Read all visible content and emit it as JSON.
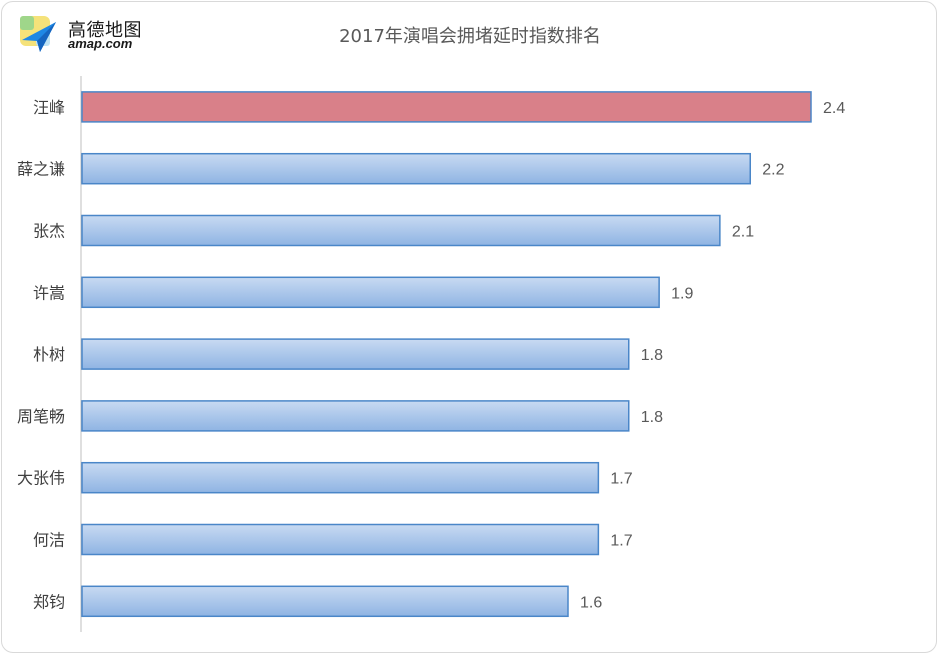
{
  "logo": {
    "cn": "高德地图",
    "en": "amap.com"
  },
  "colors": {
    "highlight": "#d98089",
    "bar_top": "#c8daf2",
    "bar_bottom": "#8fb4e3",
    "bar_stroke": "#4a86c8",
    "axis": "#bfbfbf"
  },
  "chart_data": {
    "type": "bar",
    "orientation": "horizontal",
    "title": "2017年演唱会拥堵延时指数排名",
    "categories": [
      "汪峰",
      "薛之谦",
      "张杰",
      "许嵩",
      "朴树",
      "周笔畅",
      "大张伟",
      "何洁",
      "郑钧"
    ],
    "values": [
      2.4,
      2.2,
      2.1,
      1.9,
      1.8,
      1.8,
      1.7,
      1.7,
      1.6
    ],
    "value_labels": [
      "2.4",
      "2.2",
      "2.1",
      "1.9",
      "1.8",
      "1.8",
      "1.7",
      "1.7",
      "1.6"
    ],
    "highlight_index": 0,
    "xlim": [
      0,
      2.4
    ],
    "grid": false,
    "legend": "none"
  }
}
